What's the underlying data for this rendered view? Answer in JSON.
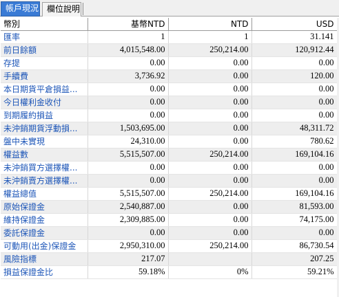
{
  "tabs": [
    {
      "label": "帳戶現況",
      "active": true
    },
    {
      "label": "欄位說明",
      "active": false
    }
  ],
  "table": {
    "headers": [
      "幣別",
      "基幣NTD",
      "NTD",
      "USD"
    ],
    "rows": [
      {
        "label": "匯率",
        "values": [
          "1",
          "1",
          "31.141"
        ]
      },
      {
        "label": "前日餘額",
        "values": [
          "4,015,548.00",
          "250,214.00",
          "120,912.44"
        ]
      },
      {
        "label": "存提",
        "values": [
          "0.00",
          "0.00",
          "0.00"
        ]
      },
      {
        "label": "手續費",
        "values": [
          "3,736.92",
          "0.00",
          "120.00"
        ]
      },
      {
        "label": "本日期貨平倉損益...",
        "values": [
          "0.00",
          "0.00",
          "0.00"
        ]
      },
      {
        "label": "今日權利金收付",
        "values": [
          "0.00",
          "0.00",
          "0.00"
        ]
      },
      {
        "label": "到期履約損益",
        "values": [
          "0.00",
          "0.00",
          "0.00"
        ]
      },
      {
        "label": "未沖銷期貨浮動損...",
        "values": [
          "1,503,695.00",
          "0.00",
          "48,311.72"
        ]
      },
      {
        "label": "盤中未實現",
        "values": [
          "24,310.00",
          "0.00",
          "780.62"
        ]
      },
      {
        "label": "權益數",
        "values": [
          "5,515,507.00",
          "250,214.00",
          "169,104.16"
        ]
      },
      {
        "label": "未沖銷買方選擇權...",
        "values": [
          "0.00",
          "0.00",
          "0.00"
        ]
      },
      {
        "label": "未沖銷賣方選擇權...",
        "values": [
          "0.00",
          "0.00",
          "0.00"
        ]
      },
      {
        "label": "權益總值",
        "values": [
          "5,515,507.00",
          "250,214.00",
          "169,104.16"
        ]
      },
      {
        "label": "原始保證金",
        "values": [
          "2,540,887.00",
          "0.00",
          "81,593.00"
        ]
      },
      {
        "label": "維持保證金",
        "values": [
          "2,309,885.00",
          "0.00",
          "74,175.00"
        ]
      },
      {
        "label": "委託保證金",
        "values": [
          "0.00",
          "0.00",
          "0.00"
        ]
      },
      {
        "label": "可動用(出金)保證金",
        "values": [
          "2,950,310.00",
          "250,214.00",
          "86,730.54"
        ]
      },
      {
        "label": "風險指標",
        "values": [
          "217.07",
          "",
          "207.25"
        ]
      },
      {
        "label": "損益保證金比",
        "values": [
          "59.18%",
          "0%",
          "59.21%"
        ]
      }
    ]
  }
}
